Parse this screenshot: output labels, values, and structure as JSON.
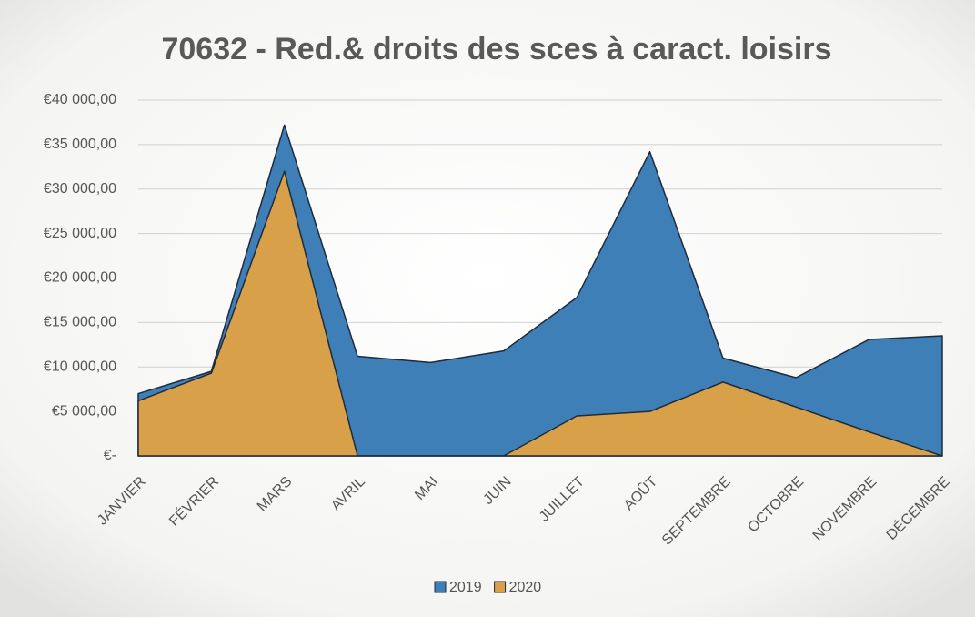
{
  "chart_data": {
    "type": "area",
    "title": "70632 - Red.& droits des sces à caract. loisirs",
    "categories": [
      "JANVIER",
      "FÉVRIER",
      "MARS",
      "AVRIL",
      "MAI",
      "JUIN",
      "JUILLET",
      "AOÛT",
      "SEPTEMBRE",
      "OCTOBRE",
      "NOVEMBRE",
      "DÉCEMBRE"
    ],
    "series": [
      {
        "name": "2019",
        "color": "#3f7fb8",
        "values": [
          7000,
          9500,
          37200,
          11200,
          10500,
          11800,
          17800,
          34200,
          11000,
          8800,
          13100,
          13500
        ]
      },
      {
        "name": "2020",
        "color": "#d9a04a",
        "values": [
          6200,
          9300,
          32000,
          0,
          0,
          0,
          4500,
          5000,
          8300,
          5500,
          2700,
          0
        ]
      }
    ],
    "ylim": [
      0,
      40000
    ],
    "yticks": [
      {
        "value": 0,
        "label": "€-"
      },
      {
        "value": 5000,
        "label": "€5 000,00"
      },
      {
        "value": 10000,
        "label": "€10 000,00"
      },
      {
        "value": 15000,
        "label": "€15 000,00"
      },
      {
        "value": 20000,
        "label": "€20 000,00"
      },
      {
        "value": 25000,
        "label": "€25 000,00"
      },
      {
        "value": 30000,
        "label": "€30 000,00"
      },
      {
        "value": 35000,
        "label": "€35 000,00"
      },
      {
        "value": 40000,
        "label": "€40 000,00"
      }
    ],
    "grid": true,
    "legend": "bottom"
  }
}
